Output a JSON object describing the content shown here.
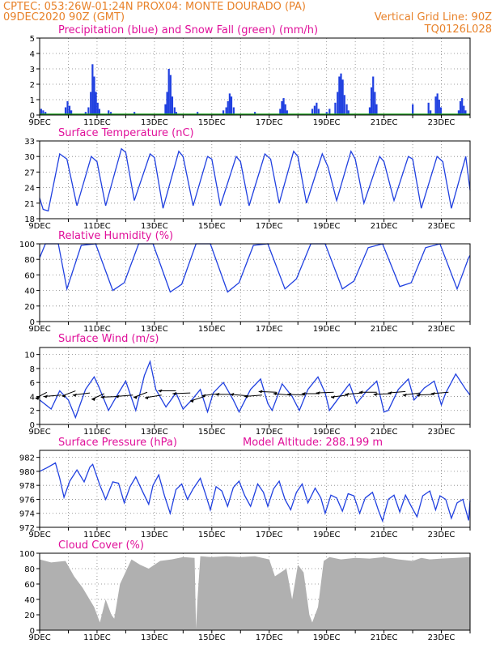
{
  "header": {
    "line1_left": "CPTEC:   053:26W-01:24N   PROX04: MONTE DOURADO (PA)",
    "line2_left": "09DEC2020 90Z (GMT)",
    "line2_right": "Vertical Grid Line: 90Z",
    "line3_right": "TQ0126L028"
  },
  "colors": {
    "header_text": "#e8822a",
    "panel_title": "#e0109a",
    "series_blue": "#2040e0",
    "snow_green": "#20a020",
    "cloud_gray": "#b0b0b0",
    "wind_arrow": "#000000"
  },
  "time_axis": {
    "tick_labels": [
      "9DEC",
      "11DEC",
      "13DEC",
      "15DEC",
      "17DEC",
      "19DEC",
      "21DEC",
      "23DEC"
    ],
    "tick_days": [
      0,
      2,
      4,
      6,
      8,
      10,
      12,
      14
    ],
    "start_label": "9DEC",
    "end_day": 15
  },
  "chart_data": [
    {
      "id": "precip",
      "type": "bar",
      "title": "Precipitation (blue) and Snow Fall (green) (mm/h)",
      "ylim": [
        0,
        5
      ],
      "yticks": [
        0,
        1,
        2,
        3,
        4,
        5
      ],
      "grid": true,
      "series": [
        {
          "name": "Precipitation",
          "color": "#2040e0",
          "points": [
            [
              0.05,
              0.4
            ],
            [
              0.12,
              0.3
            ],
            [
              0.2,
              0.2
            ],
            [
              0.9,
              0.5
            ],
            [
              0.97,
              0.9
            ],
            [
              1.04,
              0.6
            ],
            [
              1.1,
              0.3
            ],
            [
              1.6,
              0.2
            ],
            [
              1.7,
              0.5
            ],
            [
              1.78,
              1.5
            ],
            [
              1.84,
              3.3
            ],
            [
              1.9,
              2.5
            ],
            [
              1.96,
              1.5
            ],
            [
              2.02,
              0.8
            ],
            [
              2.08,
              0.4
            ],
            [
              2.4,
              0.3
            ],
            [
              2.48,
              0.2
            ],
            [
              3.3,
              0.2
            ],
            [
              4.38,
              0.7
            ],
            [
              4.44,
              1.5
            ],
            [
              4.5,
              3.0
            ],
            [
              4.56,
              2.6
            ],
            [
              4.62,
              1.2
            ],
            [
              4.7,
              0.5
            ],
            [
              4.76,
              0.2
            ],
            [
              5.5,
              0.2
            ],
            [
              6.4,
              0.3
            ],
            [
              6.5,
              0.5
            ],
            [
              6.56,
              0.9
            ],
            [
              6.62,
              1.4
            ],
            [
              6.68,
              1.2
            ],
            [
              6.76,
              0.5
            ],
            [
              7.5,
              0.2
            ],
            [
              8.38,
              0.4
            ],
            [
              8.44,
              0.9
            ],
            [
              8.5,
              1.1
            ],
            [
              8.56,
              0.7
            ],
            [
              8.62,
              0.3
            ],
            [
              9.5,
              0.4
            ],
            [
              9.58,
              0.6
            ],
            [
              9.65,
              0.8
            ],
            [
              9.72,
              0.4
            ],
            [
              10.0,
              0.2
            ],
            [
              10.1,
              0.4
            ],
            [
              10.3,
              0.8
            ],
            [
              10.38,
              1.5
            ],
            [
              10.44,
              2.5
            ],
            [
              10.5,
              2.7
            ],
            [
              10.56,
              2.3
            ],
            [
              10.62,
              1.3
            ],
            [
              10.7,
              0.7
            ],
            [
              10.76,
              0.3
            ],
            [
              11.5,
              0.5
            ],
            [
              11.56,
              1.8
            ],
            [
              11.62,
              2.5
            ],
            [
              11.68,
              1.5
            ],
            [
              11.74,
              0.7
            ],
            [
              13.0,
              0.7
            ],
            [
              13.55,
              0.8
            ],
            [
              13.62,
              0.3
            ],
            [
              13.8,
              1.2
            ],
            [
              13.86,
              1.4
            ],
            [
              13.92,
              1.0
            ],
            [
              13.98,
              0.5
            ],
            [
              14.6,
              0.3
            ],
            [
              14.66,
              0.9
            ],
            [
              14.72,
              1.1
            ],
            [
              14.78,
              0.6
            ],
            [
              14.84,
              0.3
            ]
          ]
        },
        {
          "name": "Snow Fall",
          "color": "#20a020",
          "points": []
        }
      ]
    },
    {
      "id": "temp",
      "type": "line",
      "title": "Surface Temperature (nC)",
      "ylim": [
        18,
        33
      ],
      "yticks": [
        18,
        21,
        24,
        27,
        30,
        33
      ],
      "grid": true,
      "series": [
        {
          "name": "Temperature",
          "color": "#2040e0",
          "x": [
            0,
            0.12,
            0.3,
            0.7,
            0.95,
            1.3,
            1.8,
            2.0,
            2.3,
            2.85,
            3.0,
            3.3,
            3.85,
            4.0,
            4.3,
            4.85,
            5.0,
            5.35,
            5.85,
            6.0,
            6.3,
            6.85,
            7.0,
            7.3,
            7.85,
            8.05,
            8.35,
            8.85,
            9.0,
            9.3,
            9.85,
            10.05,
            10.35,
            10.85,
            11.0,
            11.3,
            11.85,
            12.0,
            12.35,
            12.85,
            13.0,
            13.3,
            13.85,
            14.05,
            14.35,
            14.85,
            15.0
          ],
          "y": [
            22.0,
            19.8,
            19.5,
            30.5,
            29.5,
            20.5,
            30.0,
            29.0,
            20.5,
            31.5,
            30.8,
            21.5,
            30.5,
            29.8,
            20.0,
            31.0,
            30.0,
            20.5,
            30.0,
            29.5,
            20.5,
            30.0,
            29.0,
            20.5,
            30.5,
            29.5,
            21.0,
            31.0,
            30.0,
            21.0,
            30.5,
            28.0,
            21.5,
            31.0,
            29.5,
            21.0,
            30.0,
            29.0,
            21.5,
            30.0,
            29.5,
            20.0,
            30.0,
            29.0,
            20.0,
            30.0,
            23.5
          ]
        }
      ]
    },
    {
      "id": "rh",
      "type": "line",
      "title": "Relative Humidity (%)",
      "ylim": [
        0,
        100
      ],
      "yticks": [
        0,
        20,
        40,
        60,
        80,
        100
      ],
      "grid": true,
      "series": [
        {
          "name": "Relative Humidity",
          "color": "#2040e0",
          "x": [
            0,
            0.2,
            0.65,
            0.95,
            1.45,
            1.95,
            2.55,
            2.95,
            3.45,
            3.95,
            4.55,
            4.95,
            5.45,
            5.95,
            6.55,
            6.95,
            7.45,
            7.95,
            8.55,
            8.95,
            9.45,
            9.95,
            10.55,
            10.95,
            11.45,
            11.95,
            12.55,
            12.95,
            13.45,
            13.95,
            14.55,
            14.95,
            15.0
          ],
          "y": [
            82,
            100,
            100,
            42,
            98,
            100,
            40,
            50,
            100,
            100,
            38,
            48,
            100,
            100,
            38,
            50,
            98,
            100,
            42,
            55,
            100,
            100,
            42,
            52,
            95,
            100,
            45,
            50,
            95,
            100,
            42,
            82,
            85
          ]
        }
      ]
    },
    {
      "id": "wind",
      "type": "line",
      "title": "Surface Wind (m/s)",
      "ylim": [
        0,
        11
      ],
      "yticks": [
        0,
        2,
        4,
        6,
        8,
        10
      ],
      "grid": true,
      "series": [
        {
          "name": "Wind speed",
          "color": "#2040e0",
          "x": [
            0,
            0.4,
            0.7,
            1.0,
            1.25,
            1.6,
            1.9,
            2.05,
            2.4,
            2.75,
            3.0,
            3.35,
            3.65,
            3.85,
            4.05,
            4.4,
            4.75,
            5.0,
            5.3,
            5.6,
            5.85,
            6.05,
            6.4,
            6.75,
            6.95,
            7.35,
            7.7,
            7.95,
            8.1,
            8.45,
            8.8,
            9.05,
            9.35,
            9.7,
            9.95,
            10.1,
            10.5,
            10.8,
            11.05,
            11.4,
            11.75,
            12.0,
            12.15,
            12.5,
            12.85,
            13.05,
            13.4,
            13.75,
            14.0,
            14.15,
            14.5,
            14.85,
            15.0
          ],
          "y": [
            3.5,
            2.2,
            4.8,
            3.5,
            1.0,
            5.0,
            6.8,
            5.5,
            2.0,
            4.5,
            6.2,
            2.0,
            7.0,
            9.0,
            5.0,
            2.5,
            4.5,
            2.2,
            3.5,
            5.0,
            1.8,
            4.5,
            6.0,
            3.5,
            1.8,
            5.0,
            6.5,
            3.0,
            2.0,
            5.8,
            4.0,
            2.0,
            5.0,
            6.8,
            4.5,
            2.0,
            4.2,
            5.8,
            3.0,
            4.8,
            6.2,
            1.8,
            2.0,
            5.0,
            6.5,
            3.5,
            5.2,
            6.2,
            2.8,
            4.5,
            7.2,
            5.0,
            4.2
          ]
        }
      ],
      "arrows": {
        "speed": [
          4.6,
          4.2,
          4.8,
          4.5,
          4.4,
          4.0,
          4.2,
          4.6,
          4.2,
          4.8,
          4.5,
          4.0,
          4.4,
          4.3,
          4.1,
          4.2,
          4.6,
          4.2,
          4.2,
          4.4,
          4.6,
          4.2,
          4.5,
          4.6,
          4.4,
          4.7,
          4.5,
          4.3,
          4.6
        ],
        "day": [
          0.25,
          0.75,
          1.25,
          1.75,
          2.25,
          2.75,
          3.25,
          3.75,
          4.25,
          4.75,
          5.25,
          5.75,
          6.25,
          6.75,
          7.25,
          7.75,
          8.25,
          8.75,
          9.25,
          9.75,
          10.25,
          10.75,
          11.25,
          11.75,
          12.25,
          12.75,
          13.25,
          13.75,
          14.25
        ],
        "dir_deg": [
          340,
          20,
          350,
          15,
          345,
          25,
          20,
          350,
          10,
          30,
          25,
          355,
          15,
          30,
          40,
          20,
          35,
          40,
          35,
          30,
          25,
          15,
          20,
          30,
          25,
          20,
          15,
          25,
          20
        ]
      }
    },
    {
      "id": "pressure",
      "type": "line",
      "title": "Surface Pressure (hPa)",
      "extra_label": "Model Altitude: 288.199 m",
      "ylim": [
        972,
        983
      ],
      "yticks": [
        972,
        974,
        976,
        978,
        980,
        982
      ],
      "grid": true,
      "series": [
        {
          "name": "Pressure",
          "color": "#2040e0",
          "x": [
            0,
            0.25,
            0.55,
            0.7,
            0.85,
            1.05,
            1.3,
            1.55,
            1.75,
            1.85,
            2.1,
            2.3,
            2.55,
            2.75,
            2.95,
            3.15,
            3.35,
            3.6,
            3.8,
            3.95,
            4.15,
            4.35,
            4.55,
            4.75,
            4.95,
            5.15,
            5.35,
            5.6,
            5.8,
            5.95,
            6.15,
            6.35,
            6.55,
            6.75,
            6.95,
            7.15,
            7.35,
            7.6,
            7.8,
            7.95,
            8.15,
            8.35,
            8.55,
            8.75,
            8.95,
            9.15,
            9.35,
            9.6,
            9.8,
            9.95,
            10.15,
            10.35,
            10.55,
            10.75,
            10.95,
            11.15,
            11.35,
            11.6,
            11.8,
            11.95,
            12.15,
            12.35,
            12.55,
            12.75,
            12.95,
            13.15,
            13.35,
            13.6,
            13.8,
            13.95,
            14.15,
            14.35,
            14.55,
            14.75,
            14.95,
            15.0
          ],
          "y": [
            980.0,
            980.5,
            981.2,
            979.0,
            976.3,
            978.6,
            980.2,
            978.5,
            980.6,
            981.0,
            978.0,
            976.0,
            978.5,
            978.3,
            975.5,
            977.8,
            979.2,
            977.0,
            975.3,
            978.0,
            979.5,
            976.5,
            974.0,
            977.4,
            978.2,
            976.0,
            977.5,
            979.0,
            976.5,
            974.5,
            977.8,
            977.2,
            975.0,
            977.7,
            978.6,
            976.5,
            975.0,
            978.2,
            977.0,
            975.0,
            977.5,
            978.6,
            976.0,
            974.5,
            977.0,
            978.2,
            975.5,
            977.6,
            976.2,
            974.0,
            976.6,
            976.2,
            974.3,
            976.8,
            976.5,
            974.0,
            976.2,
            977.0,
            974.5,
            972.9,
            976.0,
            976.6,
            974.2,
            976.6,
            975.0,
            973.5,
            976.5,
            977.2,
            974.5,
            976.5,
            976.0,
            973.3,
            975.5,
            976.0,
            973.0,
            975.8
          ]
        }
      ]
    },
    {
      "id": "cloud",
      "type": "area",
      "title": "Cloud Cover (%)",
      "ylim": [
        0,
        100
      ],
      "yticks": [
        0,
        20,
        40,
        60,
        80,
        100
      ],
      "grid": true,
      "series": [
        {
          "name": "Cloud cover",
          "color": "#b0b0b0",
          "x": [
            0,
            0.4,
            0.9,
            1.2,
            1.5,
            1.9,
            2.1,
            2.3,
            2.5,
            2.6,
            2.8,
            3.2,
            3.5,
            3.8,
            4.2,
            4.6,
            5.0,
            5.4,
            5.45,
            5.5,
            5.6,
            6.0,
            6.5,
            7.0,
            7.5,
            8.0,
            8.2,
            8.6,
            8.8,
            9.0,
            9.2,
            9.4,
            9.5,
            9.7,
            9.9,
            10.1,
            10.5,
            11.0,
            11.5,
            12.0,
            12.5,
            13.0,
            13.3,
            13.6,
            14.0,
            14.5,
            15.0
          ],
          "y": [
            92,
            88,
            90,
            70,
            55,
            30,
            10,
            40,
            20,
            15,
            60,
            92,
            85,
            80,
            90,
            92,
            95,
            94,
            2,
            40,
            96,
            95,
            96,
            95,
            96,
            92,
            70,
            80,
            40,
            85,
            75,
            20,
            10,
            30,
            90,
            95,
            92,
            94,
            93,
            95,
            92,
            90,
            94,
            92,
            93,
            94,
            95
          ]
        }
      ]
    }
  ]
}
